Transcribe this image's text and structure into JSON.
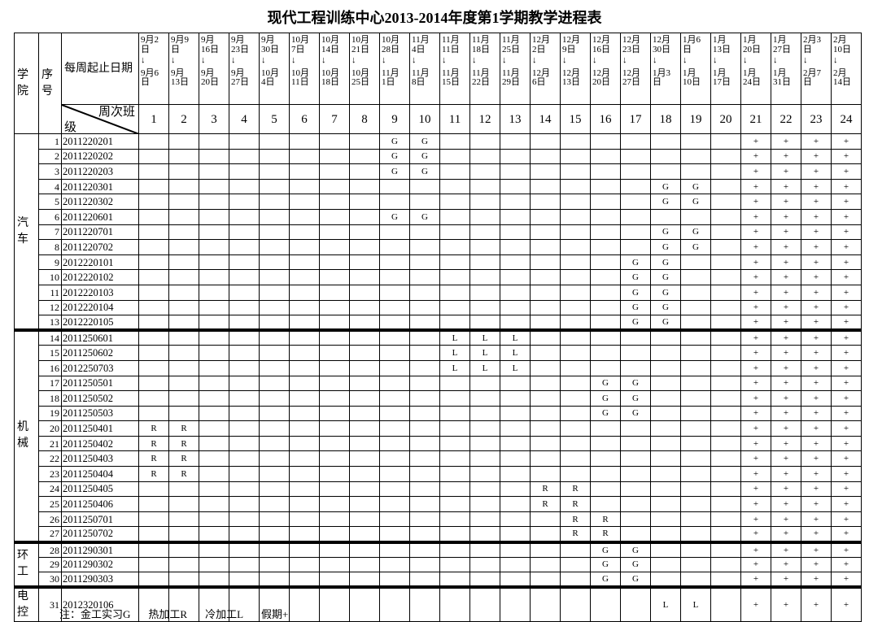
{
  "title": "现代工程训练中心2013-2014年度第1学期教学进程表",
  "headers": {
    "college": "学院",
    "index": "序号",
    "date_label": "每周起止日期",
    "week_label": "周次班",
    "class_label": "级"
  },
  "weeks": [
    {
      "n": "1",
      "start": "9月2日",
      "end": "9月6日"
    },
    {
      "n": "2",
      "start": "9月9日",
      "end": "9月13日"
    },
    {
      "n": "3",
      "start": "9月16日",
      "end": "9月20日"
    },
    {
      "n": "4",
      "start": "9月23日",
      "end": "9月27日"
    },
    {
      "n": "5",
      "start": "9月30日",
      "end": "10月4日"
    },
    {
      "n": "6",
      "start": "10月7日",
      "end": "10月11日"
    },
    {
      "n": "7",
      "start": "10月14日",
      "end": "10月18日"
    },
    {
      "n": "8",
      "start": "10月21日",
      "end": "10月25日"
    },
    {
      "n": "9",
      "start": "10月28日",
      "end": "11月1日"
    },
    {
      "n": "10",
      "start": "11月4日",
      "end": "11月8日"
    },
    {
      "n": "11",
      "start": "11月11日",
      "end": "11月15日"
    },
    {
      "n": "12",
      "start": "11月18日",
      "end": "11月22日"
    },
    {
      "n": "13",
      "start": "11月25日",
      "end": "11月29日"
    },
    {
      "n": "14",
      "start": "12月2日",
      "end": "12月6日"
    },
    {
      "n": "15",
      "start": "12月9日",
      "end": "12月13日"
    },
    {
      "n": "16",
      "start": "12月16日",
      "end": "12月20日"
    },
    {
      "n": "17",
      "start": "12月23日",
      "end": "12月27日"
    },
    {
      "n": "18",
      "start": "12月30日",
      "end": "1月3日"
    },
    {
      "n": "19",
      "start": "1月6日",
      "end": "1月10日"
    },
    {
      "n": "20",
      "start": "1月13日",
      "end": "1月17日"
    },
    {
      "n": "21",
      "start": "1月20日",
      "end": "1月24日"
    },
    {
      "n": "22",
      "start": "1月27日",
      "end": "1月31日"
    },
    {
      "n": "23",
      "start": "2月3日",
      "end": "2月7日"
    },
    {
      "n": "24",
      "start": "2月10日",
      "end": "2月14日"
    }
  ],
  "arrow": "↓",
  "colleges": [
    {
      "name": "汽车",
      "classes": [
        {
          "i": "1",
          "id": "2011220201",
          "marks": {
            "9": "G",
            "10": "G"
          }
        },
        {
          "i": "2",
          "id": "2011220202",
          "marks": {
            "9": "G",
            "10": "G"
          }
        },
        {
          "i": "3",
          "id": "2011220203",
          "marks": {
            "9": "G",
            "10": "G"
          }
        },
        {
          "i": "4",
          "id": "2011220301",
          "marks": {
            "18": "G",
            "19": "G"
          }
        },
        {
          "i": "5",
          "id": "2011220302",
          "marks": {
            "18": "G",
            "19": "G"
          }
        },
        {
          "i": "6",
          "id": "2011220601",
          "marks": {
            "9": "G",
            "10": "G"
          }
        },
        {
          "i": "7",
          "id": "2011220701",
          "marks": {
            "18": "G",
            "19": "G"
          }
        },
        {
          "i": "8",
          "id": "2011220702",
          "marks": {
            "18": "G",
            "19": "G"
          }
        },
        {
          "i": "9",
          "id": "2012220101",
          "marks": {
            "17": "G",
            "18": "G"
          }
        },
        {
          "i": "10",
          "id": "2012220102",
          "marks": {
            "17": "G",
            "18": "G"
          }
        },
        {
          "i": "11",
          "id": "2012220103",
          "marks": {
            "17": "G",
            "18": "G"
          }
        },
        {
          "i": "12",
          "id": "2012220104",
          "marks": {
            "17": "G",
            "18": "G"
          }
        },
        {
          "i": "13",
          "id": "2012220105",
          "marks": {
            "17": "G",
            "18": "G"
          }
        }
      ]
    },
    {
      "name": "机械",
      "classes": [
        {
          "i": "14",
          "id": "2011250601",
          "marks": {
            "11": "L",
            "12": "L",
            "13": "L"
          }
        },
        {
          "i": "15",
          "id": "2011250602",
          "marks": {
            "11": "L",
            "12": "L",
            "13": "L"
          }
        },
        {
          "i": "16",
          "id": "2012250703",
          "marks": {
            "11": "L",
            "12": "L",
            "13": "L"
          }
        },
        {
          "i": "17",
          "id": "2011250501",
          "marks": {
            "16": "G",
            "17": "G"
          }
        },
        {
          "i": "18",
          "id": "2011250502",
          "marks": {
            "16": "G",
            "17": "G"
          }
        },
        {
          "i": "19",
          "id": "2011250503",
          "marks": {
            "16": "G",
            "17": "G"
          }
        },
        {
          "i": "20",
          "id": "2011250401",
          "marks": {
            "1": "R",
            "2": "R"
          }
        },
        {
          "i": "21",
          "id": "2011250402",
          "marks": {
            "1": "R",
            "2": "R"
          }
        },
        {
          "i": "22",
          "id": "2011250403",
          "marks": {
            "1": "R",
            "2": "R"
          }
        },
        {
          "i": "23",
          "id": "2011250404",
          "marks": {
            "1": "R",
            "2": "R"
          }
        },
        {
          "i": "24",
          "id": "2011250405",
          "marks": {
            "14": "R",
            "15": "R"
          }
        },
        {
          "i": "25",
          "id": "2011250406",
          "marks": {
            "14": "R",
            "15": "R"
          }
        },
        {
          "i": "26",
          "id": "2011250701",
          "marks": {
            "15": "R",
            "16": "R"
          }
        },
        {
          "i": "27",
          "id": "2011250702",
          "marks": {
            "15": "R",
            "16": "R"
          }
        }
      ]
    },
    {
      "name": "环工",
      "classes": [
        {
          "i": "28",
          "id": "2011290301",
          "marks": {
            "16": "G",
            "17": "G"
          }
        },
        {
          "i": "29",
          "id": "2011290302",
          "marks": {
            "16": "G",
            "17": "G"
          }
        },
        {
          "i": "30",
          "id": "2011290303",
          "marks": {
            "16": "G",
            "17": "G"
          }
        }
      ]
    },
    {
      "name": "电控",
      "classes": [
        {
          "i": "31",
          "id": "2012320106",
          "marks": {
            "18": "L",
            "19": "L"
          }
        }
      ]
    }
  ],
  "holiday": {
    "weeks": [
      "21",
      "22",
      "23",
      "24"
    ],
    "mark": "+"
  },
  "legend": [
    "注：金工实习G",
    "热加工R",
    "冷加工L",
    "假期+"
  ]
}
